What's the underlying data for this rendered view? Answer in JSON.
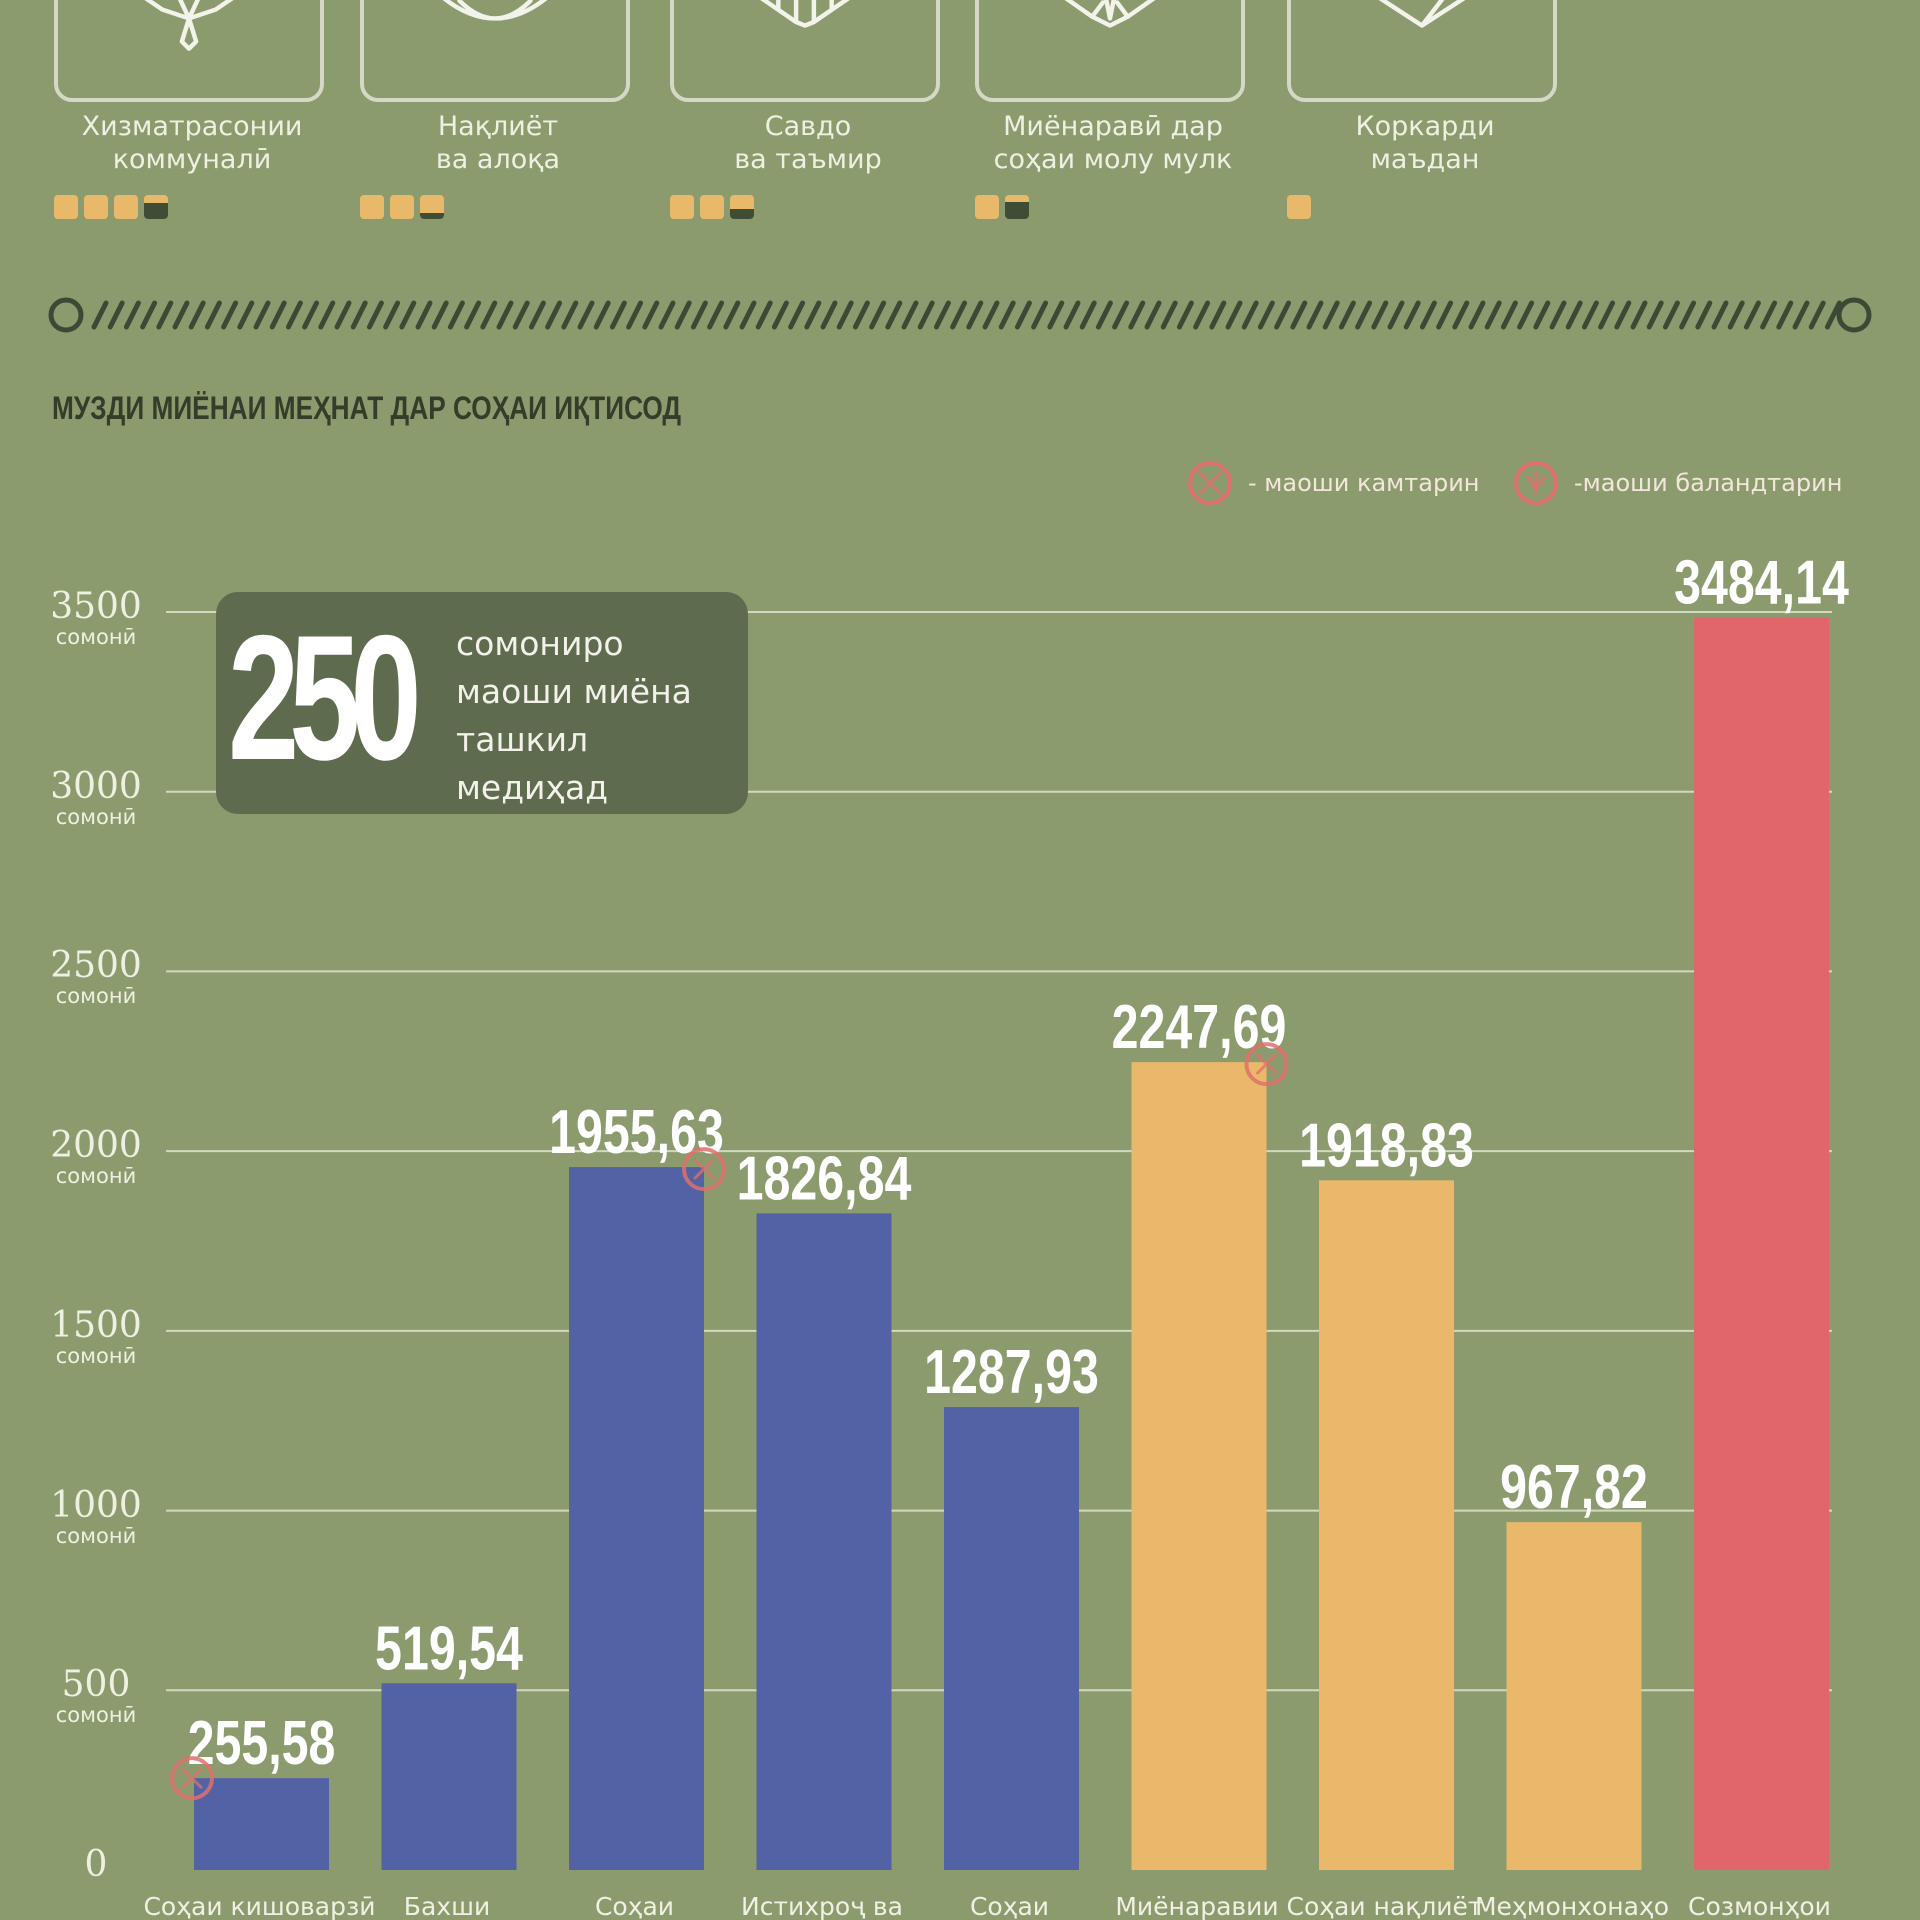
{
  "sectors": [
    {
      "name": "Хизматрасонии\nкоммуналӣ",
      "squares": [
        1,
        1,
        1,
        0.35
      ]
    },
    {
      "name": "Нақлиёт\nва алоқа",
      "squares": [
        1,
        1,
        0.75
      ]
    },
    {
      "name": "Савдо\nва таъмир",
      "squares": [
        1,
        1,
        0.6
      ]
    },
    {
      "name": "Миёнаравӣ дар\nсоҳаи молу мулк",
      "squares": [
        1,
        0.3
      ]
    },
    {
      "name": "Коркарди\nмаъдан",
      "squares": [
        1
      ]
    }
  ],
  "callout": {
    "number": "250",
    "text": "сомониро\nмаоши миёна\nташкил медиҳад"
  },
  "legend": {
    "lowest": "- маоши камтарин",
    "highest": "-маоши баландтарин",
    "marker_color": "#e0706c"
  },
  "chart_data": {
    "type": "bar",
    "title": "МУЗДИ МИЁНАИ МЕҲНАТ ДАР СОҲАИ ИҚТИСОД",
    "ylim": [
      0,
      3500
    ],
    "y_ticks": [
      {
        "value": 0,
        "label": "0",
        "unit": ""
      },
      {
        "value": 500,
        "label": "500",
        "unit": "сомонӣ"
      },
      {
        "value": 1000,
        "label": "1000",
        "unit": "сомонӣ"
      },
      {
        "value": 1500,
        "label": "1500",
        "unit": "сомонӣ"
      },
      {
        "value": 2000,
        "label": "2000",
        "unit": "сомонӣ"
      },
      {
        "value": 2500,
        "label": "2500",
        "unit": "сомонӣ"
      },
      {
        "value": 3000,
        "label": "3000",
        "unit": "сомонӣ"
      },
      {
        "value": 3500,
        "label": "3500",
        "unit": "сомонӣ"
      }
    ],
    "grid": true,
    "bars": [
      {
        "category": "Соҳаи кишоварзӣ",
        "value": 255.58,
        "label": "255,58",
        "color": "#5262a4",
        "marker": "lowest"
      },
      {
        "category": "Бахши",
        "value": 519.54,
        "label": "519,54",
        "color": "#5262a4",
        "marker": ""
      },
      {
        "category": "Соҳаи",
        "value": 1955.63,
        "label": "1955,63",
        "color": "#5262a4",
        "marker": "highest"
      },
      {
        "category": "Истихроҷ ва",
        "value": 1826.84,
        "label": "1826,84",
        "color": "#5262a4",
        "marker": ""
      },
      {
        "category": "Соҳаи",
        "value": 1287.93,
        "label": "1287,93",
        "color": "#5262a4",
        "marker": ""
      },
      {
        "category": "Миёнаравии",
        "value": 2247.69,
        "label": "2247,69",
        "color": "#e9b86a",
        "marker": "highest"
      },
      {
        "category": "Соҳаи нақлиёт",
        "value": 1918.83,
        "label": "1918,83",
        "color": "#e9b86a",
        "marker": ""
      },
      {
        "category": "Меҳмонхонаҳо",
        "value": 967.82,
        "label": "967,82",
        "color": "#e9b86a",
        "marker": ""
      },
      {
        "category": "Созмонҳои",
        "value": 3484.14,
        "label": "3484,14",
        "color": "#e0666b",
        "marker": ""
      }
    ]
  }
}
